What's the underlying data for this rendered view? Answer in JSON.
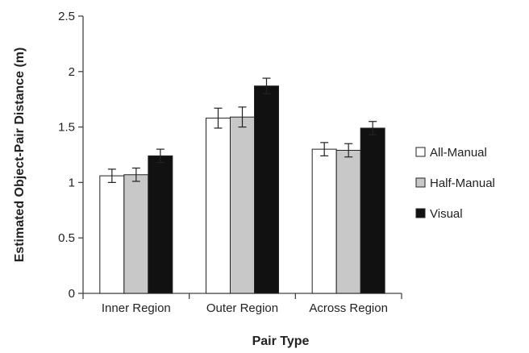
{
  "chart_data": {
    "type": "bar",
    "xlabel": "Pair Type",
    "ylabel": "Estimated Object-Pair Distance (m)",
    "categories": [
      "Inner Region",
      "Outer Region",
      "Across Region"
    ],
    "ylim": [
      0,
      2.5
    ],
    "yticks": [
      "0",
      "0.5",
      "1",
      "1.5",
      "2",
      "2.5"
    ],
    "grid": false,
    "legend_position": "right",
    "series": [
      {
        "name": "All-Manual",
        "color": "#ffffff",
        "values": [
          1.06,
          1.58,
          1.3
        ],
        "error": [
          0.06,
          0.09,
          0.06
        ]
      },
      {
        "name": "Half-Manual",
        "color": "#c8c8c8",
        "values": [
          1.07,
          1.59,
          1.29
        ],
        "error": [
          0.06,
          0.09,
          0.06
        ]
      },
      {
        "name": "Visual",
        "color": "#111111",
        "values": [
          1.24,
          1.87,
          1.49
        ],
        "error": [
          0.06,
          0.07,
          0.06
        ]
      }
    ]
  }
}
